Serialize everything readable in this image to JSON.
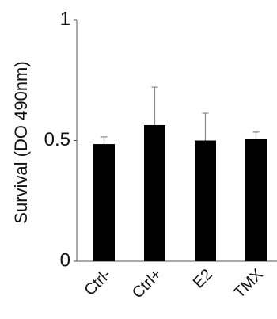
{
  "chart_data": {
    "type": "bar",
    "y_label": "Survival (DO 490nm)",
    "categories": [
      "Ctrl-",
      "Ctrl+",
      "E2",
      "TMX"
    ],
    "values": [
      0.485,
      0.564,
      0.5,
      0.505
    ],
    "errors": [
      0.03,
      0.157,
      0.113,
      0.03
    ],
    "color": "#000000",
    "ylim": [
      0,
      1
    ],
    "yticks": [
      0,
      0.5,
      1
    ]
  }
}
